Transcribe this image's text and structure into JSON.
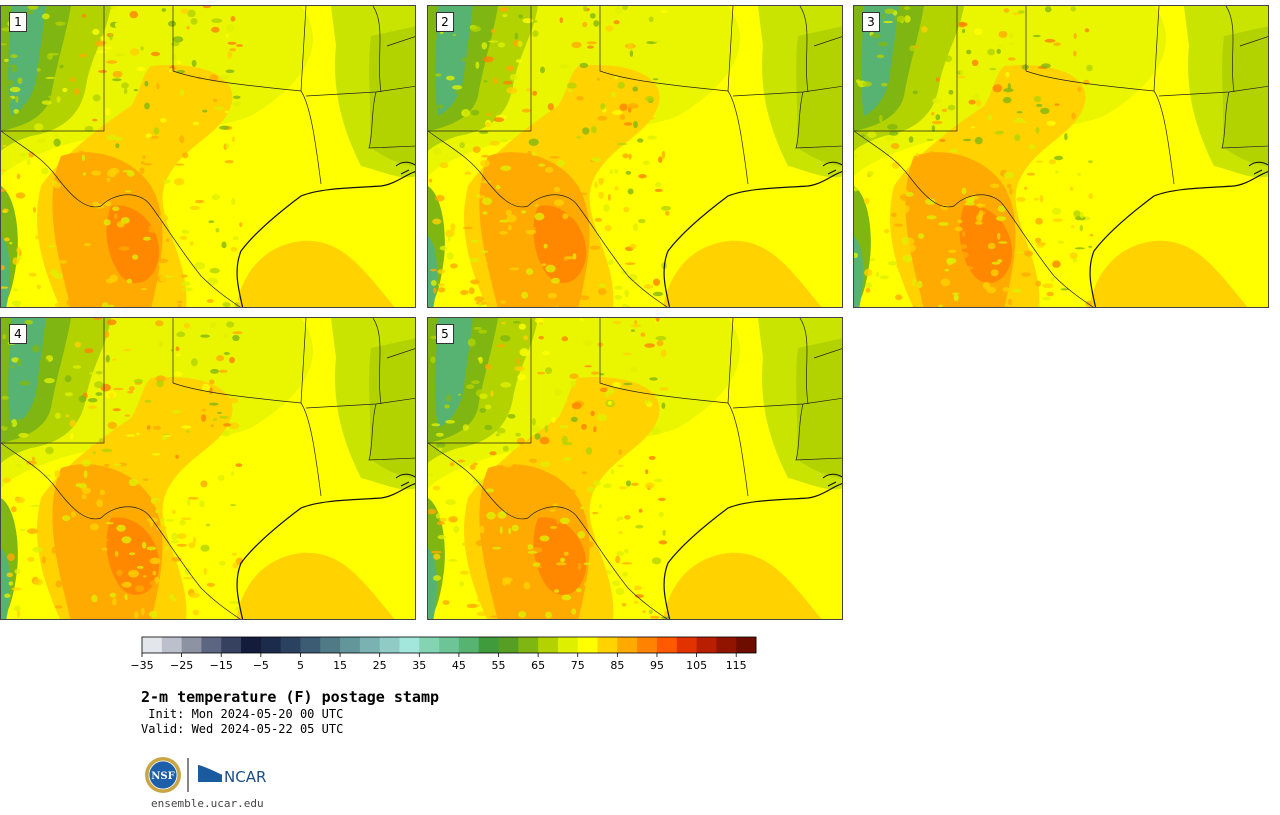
{
  "panels": [
    {
      "label": "1"
    },
    {
      "label": "2"
    },
    {
      "label": "3"
    },
    {
      "label": "4"
    },
    {
      "label": "5"
    }
  ],
  "colorbar": {
    "colors": [
      "#e3e6ea",
      "#bcbfcc",
      "#8e93a4",
      "#5d6680",
      "#364160",
      "#131c3a",
      "#1c2b4c",
      "#2a4260",
      "#3c5c73",
      "#4f7a86",
      "#62969a",
      "#79b2b0",
      "#91cbc5",
      "#a2e6dc",
      "#84d4b4",
      "#6cc497",
      "#56b372",
      "#3f9b3c",
      "#569f24",
      "#80b612",
      "#b2d300",
      "#def000",
      "#ffff00",
      "#ffd200",
      "#ffaa00",
      "#ff8200",
      "#ff5a00",
      "#e13200",
      "#b81f00",
      "#901400",
      "#6e0c00"
    ],
    "tick_labels": [
      "−35",
      "−25",
      "−15",
      "−5",
      "5",
      "15",
      "25",
      "35",
      "45",
      "55",
      "65",
      "75",
      "85",
      "95",
      "105",
      "115"
    ]
  },
  "title": "2-m temperature (F) postage stamp",
  "init_line": " Init: Mon 2024-05-20 00 UTC",
  "valid_line": "Valid: Wed 2024-05-22 05 UTC",
  "logos": {
    "nsf": "NSF",
    "ncar": "NCAR"
  },
  "site": "ensemble.ucar.edu"
}
